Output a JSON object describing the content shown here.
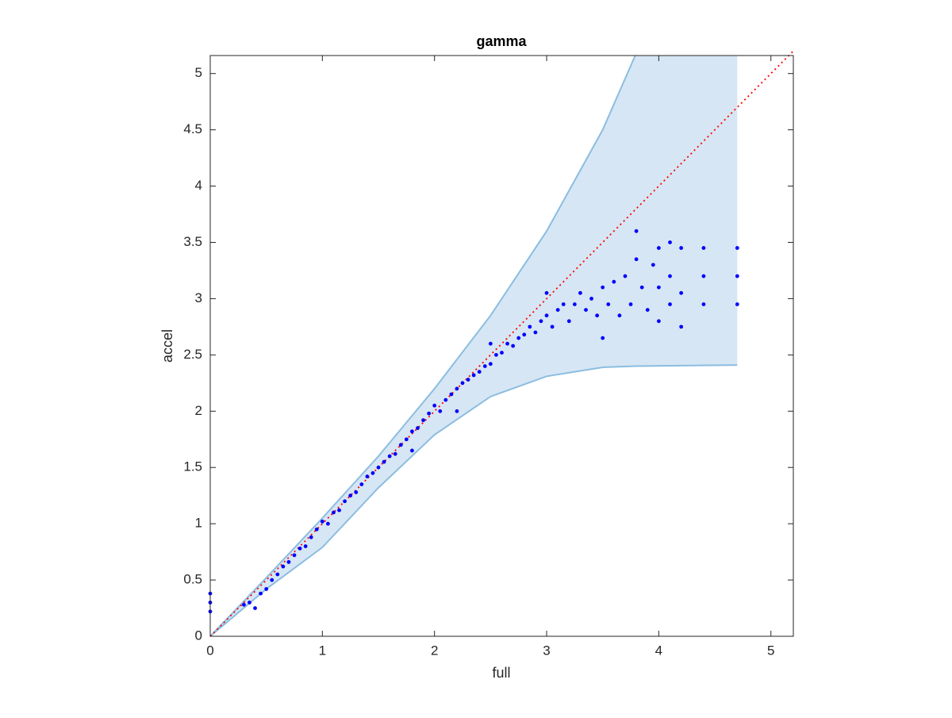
{
  "chart_data": {
    "type": "scatter",
    "title": "gamma",
    "x_label": "full",
    "y_label": "accel",
    "xlim": [
      0,
      5.2
    ],
    "ylim": [
      0,
      5.16
    ],
    "xticks": [
      0,
      1,
      2,
      3,
      4,
      5
    ],
    "yticks": [
      0,
      0.5,
      1,
      1.5,
      2,
      2.5,
      3,
      3.5,
      4,
      4.5,
      5
    ],
    "series": [
      {
        "color": "#0000ff",
        "x": [
          0,
          0,
          0,
          0.3,
          0.35,
          0.4,
          0.45,
          0.5,
          0.55,
          0.6,
          0.65,
          0.7,
          0.75,
          0.8,
          0.85,
          0.9,
          0.95,
          1.0,
          1.05,
          1.1,
          1.15,
          1.2,
          1.25,
          1.3,
          1.35,
          1.4,
          1.45,
          1.5,
          1.55,
          1.6,
          1.65,
          1.7,
          1.75,
          1.8,
          1.85,
          1.9,
          1.95,
          2.0,
          2.05,
          2.1,
          2.15,
          2.2,
          2.25,
          2.3,
          2.35,
          2.4,
          2.45,
          2.5,
          2.55,
          2.6,
          2.65,
          2.7,
          2.75,
          2.8,
          2.85,
          2.9,
          2.95,
          3.0,
          3.05,
          3.1,
          3.15,
          3.2,
          3.25,
          3.3,
          3.35,
          3.4,
          3.45,
          3.5,
          3.55,
          3.6,
          3.65,
          3.7,
          3.75,
          3.8,
          3.85,
          3.9,
          3.95,
          4.0,
          4.0,
          4.0,
          4.1,
          4.1,
          4.1,
          4.2,
          4.2,
          4.2,
          4.4,
          4.4,
          4.4,
          4.7,
          4.7,
          4.7,
          2.5,
          3.0,
          3.5,
          3.8,
          2.2,
          1.8
        ],
        "values": [
          0.22,
          0.3,
          0.38,
          0.28,
          0.3,
          0.25,
          0.38,
          0.42,
          0.5,
          0.55,
          0.62,
          0.66,
          0.72,
          0.78,
          0.8,
          0.88,
          0.95,
          1.02,
          1.0,
          1.1,
          1.12,
          1.2,
          1.25,
          1.28,
          1.35,
          1.42,
          1.45,
          1.5,
          1.55,
          1.6,
          1.62,
          1.7,
          1.75,
          1.82,
          1.85,
          1.92,
          1.98,
          2.05,
          2.0,
          2.1,
          2.15,
          2.2,
          2.25,
          2.28,
          2.32,
          2.35,
          2.4,
          2.42,
          2.5,
          2.52,
          2.6,
          2.58,
          2.65,
          2.68,
          2.75,
          2.7,
          2.8,
          2.85,
          2.75,
          2.9,
          2.95,
          2.8,
          2.95,
          3.05,
          2.9,
          3.0,
          2.85,
          3.1,
          2.95,
          3.15,
          2.85,
          3.2,
          2.95,
          3.35,
          3.1,
          2.9,
          3.3,
          3.45,
          3.1,
          2.8,
          3.5,
          3.2,
          2.95,
          3.45,
          3.05,
          2.75,
          3.45,
          3.2,
          2.95,
          3.45,
          3.2,
          2.95,
          2.6,
          3.05,
          2.65,
          3.6,
          2.0,
          1.65
        ]
      }
    ],
    "band": {
      "color": "#d6e6f4",
      "edge_color": "#8bbde0",
      "x": [
        0,
        0.5,
        1,
        1.5,
        2,
        2.5,
        3,
        3.5,
        3.79,
        4.7
      ],
      "upper": [
        0,
        0.52,
        1.05,
        1.6,
        2.2,
        2.85,
        3.6,
        4.5,
        5.16,
        5.16
      ],
      "lower": [
        0,
        0.42,
        0.79,
        1.32,
        1.79,
        2.13,
        2.31,
        2.39,
        2.4,
        2.41
      ]
    },
    "reference_line": {
      "color": "#ff0000",
      "x": [
        0,
        5.2
      ],
      "values": [
        0,
        5.2
      ]
    }
  }
}
